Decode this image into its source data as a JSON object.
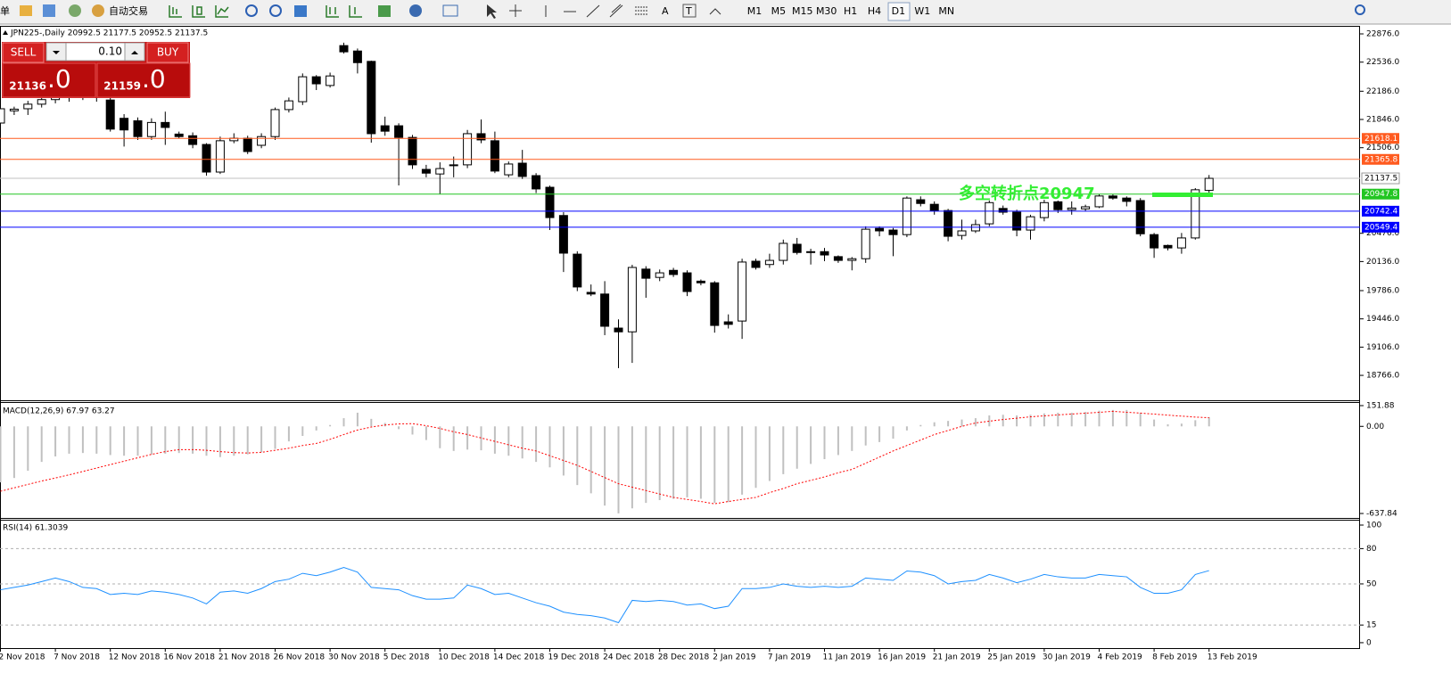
{
  "toolbar": {
    "menu": "单",
    "auto_trade": "自动交易",
    "text_tools": [
      "A",
      "T"
    ],
    "timeframes": [
      "M1",
      "M5",
      "M15",
      "M30",
      "H1",
      "H4",
      "D1",
      "W1",
      "MN"
    ]
  },
  "trade_panel": {
    "sell": "SELL",
    "buy": "BUY",
    "lot": "0.10",
    "sell_price": "21136",
    "sell_fraction": ".0",
    "buy_price": "21159",
    "buy_fraction": ".0"
  },
  "chart_data": [
    {
      "type": "candlestick",
      "title": "JPN225-,Daily  20992.5 21177.5 20952.5 21137.5",
      "open": [
        21803,
        21950,
        21975,
        22030,
        22085,
        22150,
        22120,
        22180,
        22080,
        21860,
        21830,
        21640,
        21810,
        21670,
        21650,
        21545,
        21213,
        21590,
        21620,
        21535,
        21640,
        21965,
        22060,
        22360,
        22255,
        22735,
        22670,
        22545,
        21770,
        21770,
        21630,
        21245,
        21190,
        21290,
        21300,
        21675,
        21590,
        21180,
        21320,
        21170,
        21030,
        20690,
        20225,
        19765,
        19745,
        19335,
        19290,
        20045,
        19945,
        20030,
        20000,
        19900,
        19880,
        19410,
        19420,
        20140,
        20100,
        20150,
        20344,
        20255,
        20255,
        20195,
        20150,
        20170,
        20535,
        20515,
        20460,
        20880,
        20825,
        20750,
        20450,
        20505,
        20590,
        20775,
        20730,
        20515,
        20665,
        20855,
        20760,
        20770,
        20795,
        20925,
        20900,
        20870,
        20460,
        20330,
        20300,
        20420,
        20992.5
      ],
      "high": [
        22010,
        22000,
        22070,
        22120,
        22190,
        22180,
        22220,
        22210,
        22110,
        21910,
        21870,
        21860,
        21940,
        21700,
        21690,
        21560,
        21640,
        21680,
        21650,
        21680,
        21990,
        22110,
        22400,
        22380,
        22410,
        22770,
        22700,
        22554,
        21880,
        21800,
        21660,
        21300,
        21330,
        21400,
        21720,
        21846,
        21700,
        21340,
        21480,
        21200,
        21050,
        20730,
        20260,
        19860,
        19900,
        19440,
        20097,
        20080,
        20040,
        20060,
        20030,
        19920,
        19900,
        19500,
        20170,
        20170,
        20230,
        20400,
        20420,
        20290,
        20300,
        20210,
        20190,
        20560,
        20560,
        20540,
        20920,
        20920,
        20860,
        20770,
        20640,
        20640,
        20870,
        20810,
        20760,
        20700,
        20880,
        20870,
        20860,
        20820,
        20950,
        20950,
        20920,
        20900,
        20480,
        20340,
        20480,
        21020,
        21177.5
      ],
      "low": [
        21780,
        21900,
        21900,
        21990,
        22040,
        22060,
        22080,
        22060,
        21700,
        21520,
        21600,
        21600,
        21540,
        21620,
        21500,
        21170,
        21190,
        21560,
        21430,
        21500,
        21600,
        21930,
        22020,
        22200,
        22230,
        22640,
        22400,
        21567,
        21650,
        21052,
        21250,
        21150,
        20945,
        21150,
        21260,
        21560,
        21200,
        21150,
        21130,
        20960,
        20515,
        20010,
        19780,
        19720,
        19250,
        18852,
        18916,
        19700,
        19900,
        19950,
        19720,
        19850,
        19280,
        19330,
        19205,
        20040,
        20060,
        20100,
        20220,
        20100,
        20140,
        20120,
        20030,
        20120,
        20440,
        20200,
        20430,
        20800,
        20700,
        20380,
        20400,
        20480,
        20560,
        20700,
        20440,
        20400,
        20620,
        20720,
        20700,
        20740,
        20780,
        20880,
        20800,
        20440,
        20180,
        20270,
        20230,
        20400,
        20952.5
      ],
      "close": [
        21975,
        21970,
        22030,
        22085,
        22150,
        22120,
        22180,
        22110,
        21730,
        21720,
        21640,
        21810,
        21750,
        21640,
        21545,
        21213,
        21590,
        21620,
        21460,
        21640,
        21965,
        22070,
        22360,
        22275,
        22370,
        22660,
        22530,
        21675,
        21705,
        21630,
        21300,
        21200,
        21255,
        21300,
        21675,
        21600,
        21225,
        21310,
        21160,
        21010,
        20665,
        20237,
        19830,
        19745,
        19357,
        19290,
        20065,
        19935,
        20000,
        19980,
        19775,
        19880,
        19367,
        19380,
        20130,
        20065,
        20150,
        20355,
        20245,
        20245,
        20215,
        20150,
        20170,
        20525,
        20505,
        20460,
        20900,
        20835,
        20750,
        20440,
        20505,
        20580,
        20845,
        20730,
        20515,
        20675,
        20845,
        20760,
        20780,
        20795,
        20925,
        20900,
        20860,
        20470,
        20300,
        20300,
        20420,
        21000,
        21137.5
      ],
      "up_color": "#ffffff",
      "down_color": "#000000",
      "ylim": [
        18477,
        22962
      ],
      "yticks": [
        {
          "value": 22876,
          "label": "22876.0"
        },
        {
          "value": 22536,
          "label": "22536.0"
        },
        {
          "value": 22186,
          "label": "22186.0"
        },
        {
          "value": 21846,
          "label": "21846.0"
        },
        {
          "value": 21506,
          "label": "21506.0"
        },
        {
          "value": 20476,
          "label": "20476.0"
        },
        {
          "value": 20136,
          "label": "20136.0"
        },
        {
          "value": 19786,
          "label": "19786.0"
        },
        {
          "value": 19446,
          "label": "19446.0"
        },
        {
          "value": 19106,
          "label": "19106.0"
        },
        {
          "value": 18766,
          "label": "18766.0"
        }
      ],
      "levels": [
        {
          "value": 21618.1,
          "color": "#ff5a1e"
        },
        {
          "value": 21365.8,
          "color": "#ff5a1e"
        },
        {
          "value": 20947.8,
          "color": "#22c622"
        },
        {
          "value": 20742.4,
          "color": "#0000ff"
        },
        {
          "value": 20549.4,
          "color": "#0000ff"
        }
      ],
      "bid": 21137.5,
      "annotation": {
        "text": "多空转折点20947",
        "color": "#33ee33"
      }
    },
    {
      "type": "macd",
      "title": "MACD(12,26,9) 67.97 63.27",
      "values": [
        -410,
        -378,
        -325,
        -260,
        -220,
        -200,
        -195,
        -200,
        -210,
        -215,
        -215,
        -205,
        -200,
        -195,
        -200,
        -215,
        -225,
        -215,
        -205,
        -190,
        -165,
        -110,
        -70,
        -30,
        10,
        60,
        100,
        55,
        25,
        -20,
        -60,
        -100,
        -160,
        -180,
        -170,
        -175,
        -200,
        -215,
        -235,
        -260,
        -300,
        -360,
        -430,
        -490,
        -580,
        -637,
        -600,
        -560,
        -540,
        -530,
        -520,
        -530,
        -560,
        -555,
        -500,
        -450,
        -400,
        -350,
        -310,
        -275,
        -240,
        -210,
        -180,
        -140,
        -115,
        -90,
        -30,
        10,
        30,
        40,
        50,
        60,
        80,
        85,
        80,
        85,
        95,
        100,
        100,
        105,
        115,
        120,
        120,
        100,
        50,
        15,
        20,
        45,
        67.97
      ],
      "signal": [
        -475,
        -450,
        -425,
        -400,
        -378,
        -355,
        -330,
        -305,
        -280,
        -255,
        -230,
        -205,
        -185,
        -170,
        -170,
        -175,
        -185,
        -192,
        -195,
        -190,
        -175,
        -160,
        -140,
        -125,
        -95,
        -60,
        -27,
        -5,
        10,
        18,
        20,
        5,
        -15,
        -40,
        -60,
        -85,
        -110,
        -135,
        -160,
        -180,
        -215,
        -250,
        -285,
        -330,
        -375,
        -420,
        -445,
        -470,
        -495,
        -520,
        -535,
        -550,
        -567,
        -550,
        -535,
        -520,
        -485,
        -455,
        -420,
        -395,
        -370,
        -340,
        -315,
        -270,
        -225,
        -180,
        -140,
        -100,
        -60,
        -30,
        0,
        25,
        38,
        50,
        60,
        70,
        77,
        84,
        90,
        97,
        103,
        110,
        103,
        97,
        90,
        82,
        75,
        68,
        63.27
      ],
      "color": "#c0c0c0",
      "signal_color": "#ff0000",
      "ylim": [
        -637.84,
        151.88
      ],
      "yticks": [
        151.88,
        {
          "value": 0,
          "label": "0.00"
        },
        -637.84
      ]
    },
    {
      "type": "line",
      "title": "RSI(14) 61.3039",
      "categories": [
        "2 Nov 2018",
        null,
        null,
        null,
        "7 Nov 2018",
        null,
        null,
        null,
        "12 Nov 2018",
        null,
        null,
        null,
        "16 Nov 2018",
        null,
        null,
        null,
        "21 Nov 2018",
        null,
        null,
        null,
        "26 Nov 2018",
        null,
        null,
        null,
        "30 Nov 2018",
        null,
        null,
        null,
        "5 Dec 2018",
        null,
        null,
        null,
        "10 Dec 2018",
        null,
        null,
        null,
        "14 Dec 2018",
        null,
        null,
        null,
        "19 Dec 2018",
        null,
        null,
        null,
        "24 Dec 2018",
        null,
        null,
        null,
        "28 Dec 2018",
        null,
        null,
        null,
        "2 Jan 2019",
        null,
        null,
        null,
        "7 Jan 2019",
        null,
        null,
        null,
        "11 Jan 2019",
        null,
        null,
        null,
        "16 Jan 2019",
        null,
        null,
        null,
        "21 Jan 2019",
        null,
        null,
        null,
        "25 Jan 2019",
        null,
        null,
        null,
        "30 Jan 2019",
        null,
        null,
        null,
        "4 Feb 2019",
        null,
        null,
        null,
        "8 Feb 2019",
        null,
        null,
        null,
        "13 Feb 2019"
      ],
      "values": [
        45,
        47,
        49,
        52,
        55,
        52,
        47,
        46,
        41,
        42,
        41,
        44,
        43,
        41,
        38,
        33,
        43,
        44,
        42,
        46,
        52,
        54,
        59,
        57,
        60,
        64,
        60,
        47,
        46,
        45,
        40,
        37,
        37,
        38,
        49,
        46,
        41,
        42,
        38,
        34,
        31,
        26,
        24,
        23,
        21,
        17,
        36,
        35,
        36,
        35,
        32,
        33,
        29,
        31,
        46,
        46,
        47,
        50,
        48,
        47,
        48,
        47,
        48,
        55,
        54,
        53,
        61,
        60,
        57,
        50,
        52,
        53,
        58,
        55,
        51,
        54,
        58,
        56,
        55,
        55,
        58,
        57,
        56,
        47,
        42,
        42,
        45,
        58,
        61.3039
      ],
      "color": "#1e90ff",
      "ylim": [
        -4.6,
        103.8
      ],
      "yticks": [
        100,
        80,
        50,
        15,
        0
      ],
      "grid": true
    }
  ]
}
